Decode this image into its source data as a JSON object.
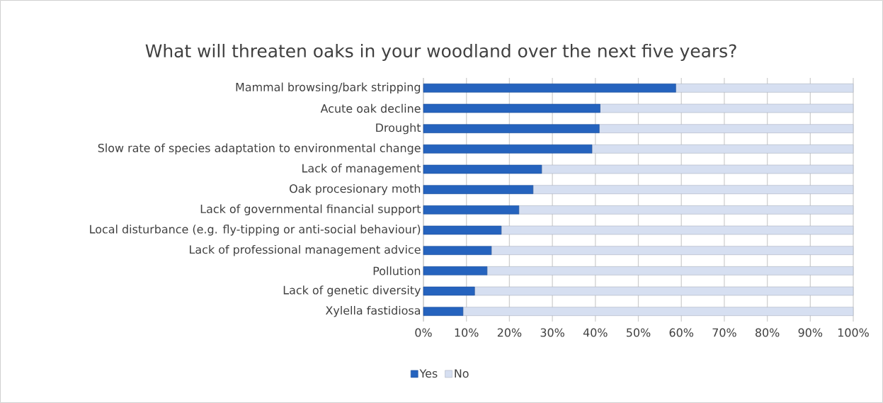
{
  "chart_data": {
    "type": "bar",
    "orientation": "horizontal",
    "stacked": true,
    "title": "What will threaten oaks in your woodland over the next five years?",
    "categories": [
      "Mammal browsing/bark stripping",
      "Acute oak decline",
      "Drought",
      "Slow rate of species adaptation to environmental change",
      "Lack of management",
      "Oak procesionary moth",
      "Lack of governmental financial support",
      "Local disturbance (e.g. fly-tipping or anti-social behaviour)",
      "Lack of professional management advice",
      "Pollution",
      "Lack of genetic diversity",
      "Xylella fastidiosa"
    ],
    "series": [
      {
        "name": "Yes",
        "color": "#2563be",
        "values": [
          58.7,
          41.1,
          40.9,
          39.2,
          27.5,
          25.5,
          22.2,
          18.1,
          15.8,
          14.8,
          11.9,
          9.2
        ]
      },
      {
        "name": "No",
        "color": "#d6dff1",
        "values": [
          41.3,
          58.9,
          59.1,
          60.8,
          72.5,
          74.5,
          77.8,
          81.9,
          84.2,
          85.2,
          88.1,
          90.8
        ]
      }
    ],
    "xlim": [
      0,
      100
    ],
    "xticks": [
      {
        "value": 0,
        "label": "0%"
      },
      {
        "value": 10,
        "label": "10%"
      },
      {
        "value": 20,
        "label": "20%"
      },
      {
        "value": 30,
        "label": "30%"
      },
      {
        "value": 40,
        "label": "40%"
      },
      {
        "value": 50,
        "label": "50%"
      },
      {
        "value": 60,
        "label": "60%"
      },
      {
        "value": 70,
        "label": "70%"
      },
      {
        "value": 80,
        "label": "80%"
      },
      {
        "value": 90,
        "label": "90%"
      },
      {
        "value": 100,
        "label": "100%"
      }
    ],
    "grid": "x",
    "legend": "bottom"
  }
}
